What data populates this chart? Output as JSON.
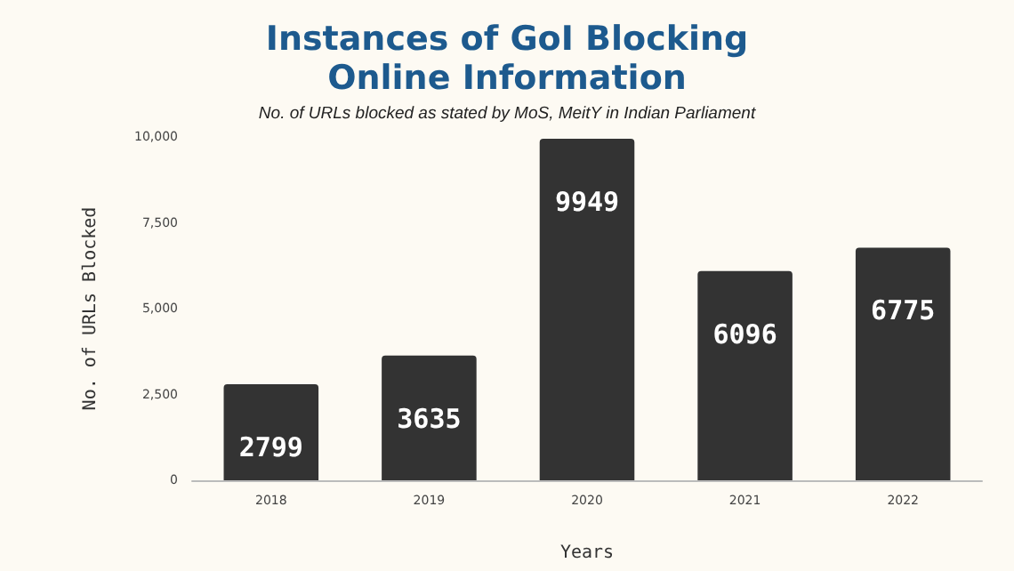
{
  "chart_data": {
    "type": "bar",
    "title": "Instances of GoI Blocking\nOnline Information",
    "subtitle": "No. of URLs blocked as stated by MoS, MeitY in Indian Parliament",
    "xlabel": "Years",
    "ylabel": "No. of URLs Blocked",
    "categories": [
      "2018",
      "2019",
      "2020",
      "2021",
      "2022"
    ],
    "values": [
      2799,
      3635,
      9949,
      6096,
      6775
    ],
    "color": "#333333",
    "ylim": [
      0,
      10000
    ],
    "yticks": [
      0,
      {
        "value": 2500,
        "label": "2,500"
      },
      {
        "value": 5000,
        "label": "5,000"
      },
      {
        "value": 7500,
        "label": "7,500"
      },
      {
        "value": 10000,
        "label": "10,000"
      }
    ],
    "data_labels": true,
    "grid": false
  }
}
